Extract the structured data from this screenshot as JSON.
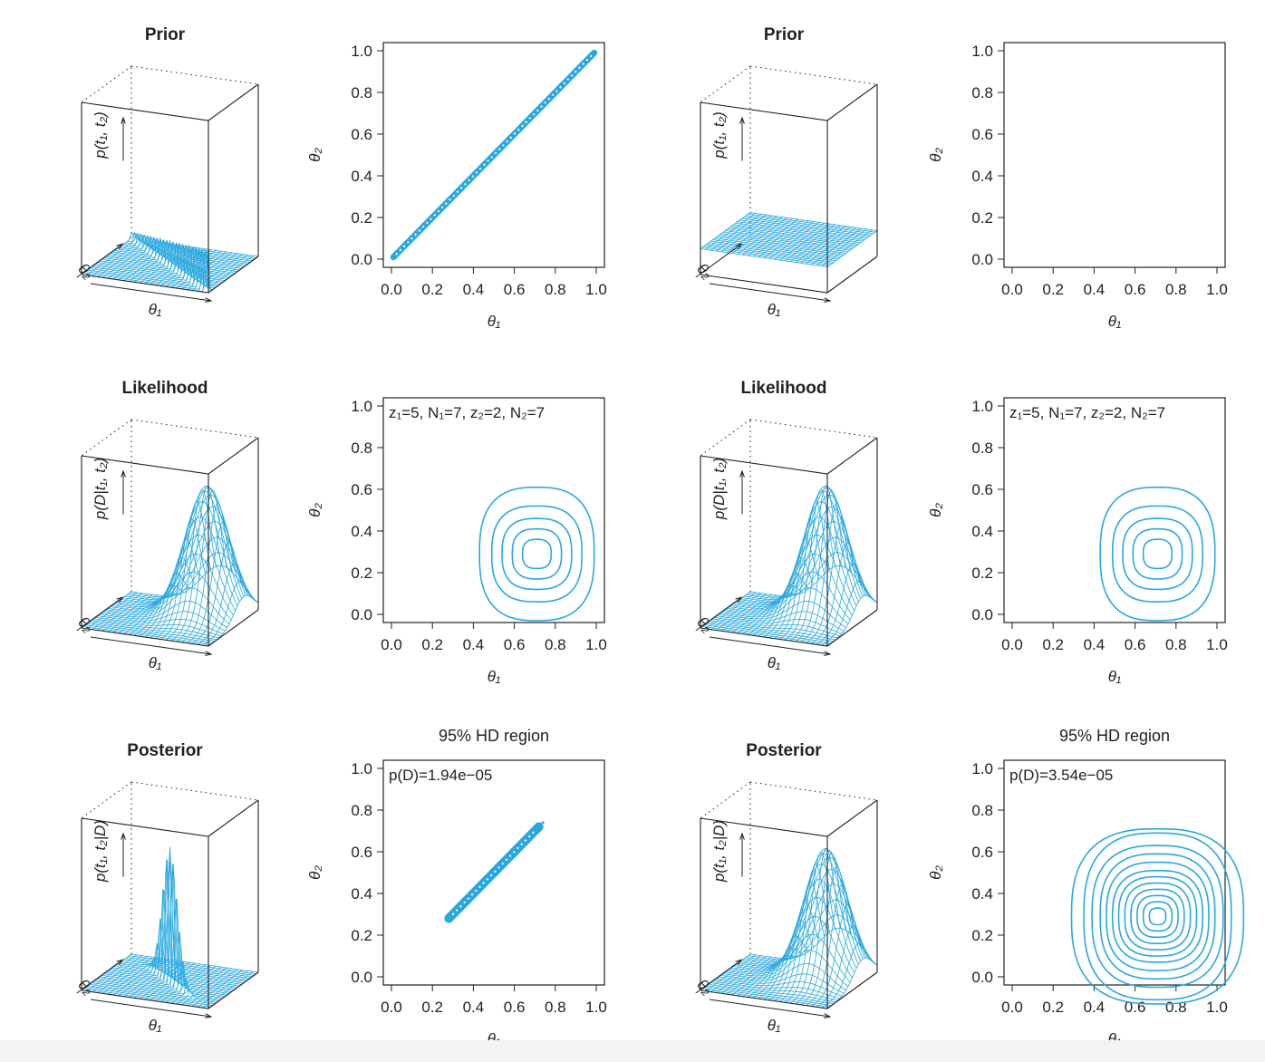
{
  "colors": {
    "accent": "#29a8e0",
    "axis": "#222222"
  },
  "symbols": {
    "theta1": "θ₁",
    "theta2": "θ₂"
  },
  "panels_3d": [
    {
      "id": "prior-left",
      "title": "Prior",
      "zlabel": "p(t₁, t₂)",
      "xlabel": "θ₁",
      "ylabel": "θ₂",
      "shape": "ridge",
      "peak": 0.25
    },
    {
      "id": "prior-right",
      "title": "Prior",
      "zlabel": "p(t₁, t₂)",
      "xlabel": "θ₁",
      "ylabel": "θ₂",
      "shape": "flat",
      "level": 0.15
    },
    {
      "id": "likelihood-left",
      "title": "Likelihood",
      "zlabel": "p(D|t₁, t₂)",
      "xlabel": "θ₁",
      "ylabel": "θ₂",
      "shape": "bump",
      "center": [
        0.71,
        0.29
      ],
      "peak": 0.75
    },
    {
      "id": "likelihood-right",
      "title": "Likelihood",
      "zlabel": "p(D|t₁, t₂)",
      "xlabel": "θ₁",
      "ylabel": "θ₂",
      "shape": "bump",
      "center": [
        0.71,
        0.29
      ],
      "peak": 0.75
    },
    {
      "id": "posterior-left",
      "title": "Posterior",
      "zlabel": "p(t₁, t₂|D)",
      "xlabel": "θ₁",
      "ylabel": "θ₂",
      "shape": "ridge-spike",
      "center": 0.5,
      "peak": 0.78
    },
    {
      "id": "posterior-right",
      "title": "Posterior",
      "zlabel": "p(t₁, t₂|D)",
      "xlabel": "θ₁",
      "ylabel": "θ₂",
      "shape": "bump",
      "center": [
        0.71,
        0.29
      ],
      "peak": 0.75
    }
  ],
  "chart_data": [
    {
      "id": "prior-left-contour",
      "type": "scatter",
      "title": "",
      "annotation": "",
      "xlabel": "θ₁",
      "ylabel": "θ₂",
      "xlim": [
        0,
        1
      ],
      "ylim": [
        0,
        1
      ],
      "ticks": [
        "0.0",
        "0.2",
        "0.4",
        "0.6",
        "0.8",
        "1.0"
      ],
      "content": "diagonal",
      "range": [
        0.01,
        0.99
      ]
    },
    {
      "id": "prior-right-contour",
      "type": "scatter",
      "title": "",
      "annotation": "",
      "xlabel": "θ₁",
      "ylabel": "θ₂",
      "xlim": [
        0,
        1
      ],
      "ylim": [
        0,
        1
      ],
      "ticks": [
        "0.0",
        "0.2",
        "0.4",
        "0.6",
        "0.8",
        "1.0"
      ],
      "content": "empty"
    },
    {
      "id": "likelihood-left-contour",
      "type": "line",
      "title": "",
      "annotation": "z₁=5, N₁=7, z₂=2, N₂=7",
      "xlabel": "θ₁",
      "ylabel": "θ₂",
      "xlim": [
        0,
        1
      ],
      "ylim": [
        0,
        1
      ],
      "ticks": [
        "0.0",
        "0.2",
        "0.4",
        "0.6",
        "0.8",
        "1.0"
      ],
      "content": "contours",
      "center": [
        0.71,
        0.29
      ],
      "rings": [
        [
          0.07,
          0.07
        ],
        [
          0.12,
          0.12
        ],
        [
          0.17,
          0.17
        ],
        [
          0.22,
          0.23
        ],
        [
          0.28,
          0.32
        ]
      ]
    },
    {
      "id": "likelihood-right-contour",
      "type": "line",
      "title": "",
      "annotation": "z₁=5, N₁=7, z₂=2, N₂=7",
      "xlabel": "θ₁",
      "ylabel": "θ₂",
      "xlim": [
        0,
        1
      ],
      "ylim": [
        0,
        1
      ],
      "ticks": [
        "0.0",
        "0.2",
        "0.4",
        "0.6",
        "0.8",
        "1.0"
      ],
      "content": "contours",
      "center": [
        0.71,
        0.29
      ],
      "rings": [
        [
          0.07,
          0.07
        ],
        [
          0.12,
          0.12
        ],
        [
          0.17,
          0.17
        ],
        [
          0.22,
          0.23
        ],
        [
          0.28,
          0.32
        ]
      ]
    },
    {
      "id": "posterior-left-contour",
      "type": "scatter",
      "title": "95% HD region",
      "annotation": "p(D)=1.94e−05",
      "xlabel": "θ₁",
      "ylabel": "θ₂",
      "xlim": [
        0,
        1
      ],
      "ylim": [
        0,
        1
      ],
      "ticks": [
        "0.0",
        "0.2",
        "0.4",
        "0.6",
        "0.8",
        "1.0"
      ],
      "content": "diagonal-hd",
      "range": [
        0.28,
        0.72
      ]
    },
    {
      "id": "posterior-right-contour",
      "type": "line",
      "title": "95% HD region",
      "annotation": "p(D)=3.54e−05",
      "xlabel": "θ₁",
      "ylabel": "θ₂",
      "xlim": [
        0,
        1
      ],
      "ylim": [
        0,
        1
      ],
      "ticks": [
        "0.0",
        "0.2",
        "0.4",
        "0.6",
        "0.8",
        "1.0"
      ],
      "content": "contours",
      "center": [
        0.71,
        0.29
      ],
      "rings": [
        [
          0.04,
          0.04
        ],
        [
          0.07,
          0.07
        ],
        [
          0.1,
          0.1
        ],
        [
          0.13,
          0.13
        ],
        [
          0.16,
          0.16
        ],
        [
          0.19,
          0.19
        ],
        [
          0.22,
          0.22
        ],
        [
          0.25,
          0.26
        ],
        [
          0.28,
          0.3
        ],
        [
          0.32,
          0.34
        ],
        [
          0.36,
          0.4
        ],
        [
          0.42,
          0.42
        ]
      ]
    }
  ]
}
